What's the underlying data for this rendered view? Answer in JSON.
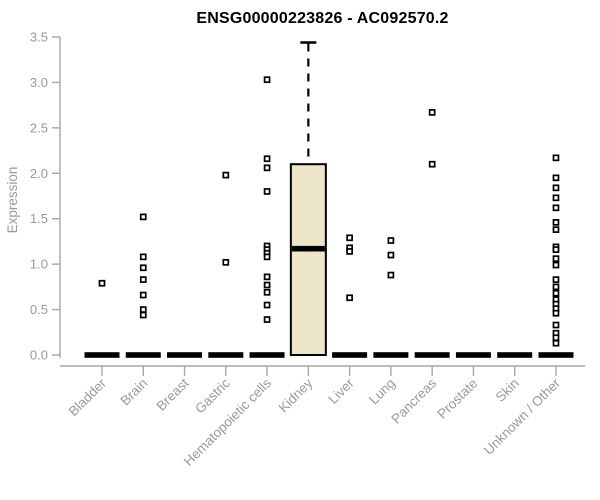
{
  "page": {
    "background": "#ffffff"
  },
  "chart_data": {
    "type": "boxplot",
    "title": "ENSG00000223826 - AC092570.2",
    "ylabel": "Expression",
    "xlabel": "",
    "ylim": [
      0,
      3.5
    ],
    "yticks": [
      0.0,
      0.5,
      1.0,
      1.5,
      2.0,
      2.5,
      3.0,
      3.5
    ],
    "grid": false,
    "legend": "none",
    "categories": [
      "Bladder",
      "Brain",
      "Breast",
      "Gastric",
      "Hematopoietic cells",
      "Kidney",
      "Liver",
      "Lung",
      "Pancreas",
      "Prostate",
      "Skin",
      "Unknown / Other"
    ],
    "boxes": [
      {
        "category": "Bladder",
        "q1": 0,
        "median": 0,
        "q3": 0,
        "whisker_low": 0,
        "whisker_high": 0,
        "outliers": [
          0.79
        ]
      },
      {
        "category": "Brain",
        "q1": 0,
        "median": 0,
        "q3": 0,
        "whisker_low": 0,
        "whisker_high": 0,
        "outliers": [
          1.52,
          1.08,
          0.96,
          0.83,
          0.66,
          0.5,
          0.44
        ]
      },
      {
        "category": "Breast",
        "q1": 0,
        "median": 0,
        "q3": 0,
        "whisker_low": 0,
        "whisker_high": 0,
        "outliers": []
      },
      {
        "category": "Gastric",
        "q1": 0,
        "median": 0,
        "q3": 0,
        "whisker_low": 0,
        "whisker_high": 0,
        "outliers": [
          1.98,
          1.02
        ]
      },
      {
        "category": "Hematopoietic cells",
        "q1": 0,
        "median": 0,
        "q3": 0,
        "whisker_low": 0,
        "whisker_high": 0,
        "outliers": [
          3.03,
          2.16,
          2.06,
          1.8,
          1.2,
          1.16,
          1.12,
          1.08,
          0.86,
          0.77,
          0.69,
          0.55,
          0.39
        ]
      },
      {
        "category": "Kidney",
        "q1": 0.0,
        "median": 1.17,
        "q3": 2.1,
        "whisker_low": 0.0,
        "whisker_high": 3.44,
        "outliers": []
      },
      {
        "category": "Liver",
        "q1": 0,
        "median": 0,
        "q3": 0,
        "whisker_low": 0,
        "whisker_high": 0,
        "outliers": [
          1.29,
          1.18,
          1.14,
          0.63
        ]
      },
      {
        "category": "Lung",
        "q1": 0,
        "median": 0,
        "q3": 0,
        "whisker_low": 0,
        "whisker_high": 0,
        "outliers": [
          1.26,
          1.1,
          0.88
        ]
      },
      {
        "category": "Pancreas",
        "q1": 0,
        "median": 0,
        "q3": 0,
        "whisker_low": 0,
        "whisker_high": 0,
        "outliers": [
          2.67,
          2.1
        ]
      },
      {
        "category": "Prostate",
        "q1": 0,
        "median": 0,
        "q3": 0,
        "whisker_low": 0,
        "whisker_high": 0,
        "outliers": []
      },
      {
        "category": "Skin",
        "q1": 0,
        "median": 0,
        "q3": 0,
        "whisker_low": 0,
        "whisker_high": 0,
        "outliers": []
      },
      {
        "category": "Unknown / Other",
        "q1": 0,
        "median": 0,
        "q3": 0,
        "whisker_low": 0,
        "whisker_high": 0,
        "outliers": [
          2.17,
          1.95,
          1.84,
          1.73,
          1.62,
          1.46,
          1.38,
          1.19,
          1.16,
          1.06,
          0.99,
          0.83,
          0.75,
          0.68,
          0.61,
          0.56,
          0.51,
          0.46,
          0.33,
          0.24,
          0.19,
          0.13
        ]
      }
    ],
    "colors": {
      "box_fill": "#ece5c8",
      "box_stroke": "#000000",
      "median": "#000000",
      "whisker": "#000000",
      "outlier_stroke": "#000000",
      "outlier_fill": "#ffffff",
      "axis": "#a6a6a6",
      "tick_label": "#999999",
      "title": "#000000"
    }
  }
}
